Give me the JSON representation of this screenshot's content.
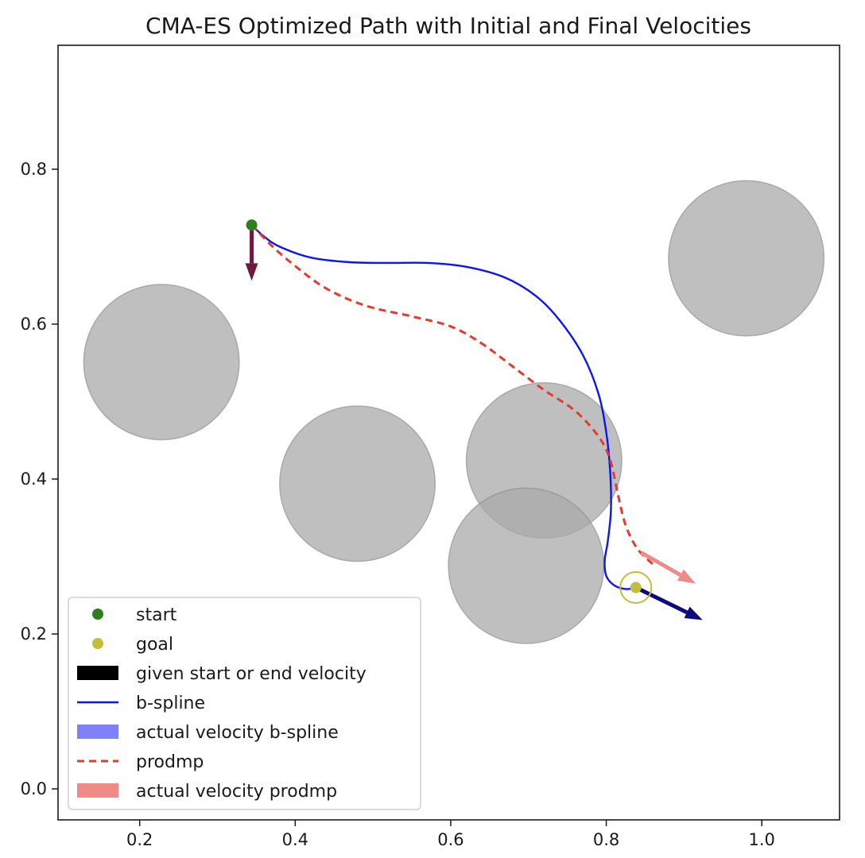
{
  "chart_data": {
    "type": "line",
    "title": "CMA-ES Optimized Path with Initial and Final Velocities",
    "xlabel": "",
    "ylabel": "",
    "xlim": [
      0.095,
      1.1
    ],
    "ylim": [
      -0.04,
      0.96
    ],
    "x_ticks": [
      0.2,
      0.4,
      0.6,
      0.8,
      1.0
    ],
    "x_tick_labels": [
      "0.2",
      "0.4",
      "0.6",
      "0.8",
      "1.0"
    ],
    "y_ticks": [
      0.0,
      0.2,
      0.4,
      0.6,
      0.8
    ],
    "y_tick_labels": [
      "0.0",
      "0.2",
      "0.4",
      "0.6",
      "0.8"
    ],
    "grid": false,
    "legend_position": "lower-left",
    "colors": {
      "start": "#2e7d1e",
      "goal": "#c2bd3a",
      "given_velocity": "#000000",
      "bspline": "#0a14f5",
      "actual_velocity_bspline": "#7f80fa",
      "prodmp": "#e53a2e",
      "actual_velocity_prodmp": "#f08a86",
      "obstacle": "#a9a9a9",
      "axes": "#1a1a1a"
    },
    "obstacles": [
      {
        "x": 0.228,
        "y": 0.551,
        "r": 0.1
      },
      {
        "x": 0.48,
        "y": 0.394,
        "r": 0.1
      },
      {
        "x": 0.72,
        "y": 0.424,
        "r": 0.1
      },
      {
        "x": 0.697,
        "y": 0.288,
        "r": 0.1
      },
      {
        "x": 0.98,
        "y": 0.685,
        "r": 0.1
      }
    ],
    "start": {
      "x": 0.344,
      "y": 0.728
    },
    "goal": {
      "x": 0.838,
      "y": 0.26,
      "tolerance_radius": 0.02
    },
    "series": [
      {
        "name": "b-spline",
        "style": "solid",
        "x": [
          0.344,
          0.36,
          0.38,
          0.42,
          0.47,
          0.52,
          0.57,
          0.62,
          0.67,
          0.71,
          0.74,
          0.77,
          0.79,
          0.8,
          0.805,
          0.806,
          0.802,
          0.798,
          0.8,
          0.81,
          0.825,
          0.838
        ],
        "y": [
          0.728,
          0.713,
          0.7,
          0.686,
          0.68,
          0.679,
          0.679,
          0.674,
          0.66,
          0.636,
          0.605,
          0.56,
          0.51,
          0.46,
          0.41,
          0.36,
          0.32,
          0.295,
          0.275,
          0.263,
          0.258,
          0.26
        ]
      },
      {
        "name": "prodmp",
        "style": "dashed",
        "x": [
          0.344,
          0.37,
          0.4,
          0.44,
          0.49,
          0.55,
          0.6,
          0.64,
          0.68,
          0.72,
          0.76,
          0.79,
          0.805,
          0.815,
          0.825,
          0.84,
          0.86
        ],
        "y": [
          0.728,
          0.701,
          0.675,
          0.646,
          0.624,
          0.61,
          0.597,
          0.575,
          0.545,
          0.515,
          0.488,
          0.455,
          0.425,
          0.38,
          0.34,
          0.31,
          0.29
        ]
      }
    ],
    "velocity_arrows": [
      {
        "name": "initial velocity",
        "x": 0.344,
        "y": 0.728,
        "dx": 0.0,
        "dy": -0.072,
        "color": "#6e1a3f"
      },
      {
        "name": "final velocity b-spline",
        "x": 0.838,
        "y": 0.26,
        "dx": 0.086,
        "dy": -0.042,
        "color": "#0b0a80"
      },
      {
        "name": "final velocity prodmp",
        "x": 0.845,
        "y": 0.305,
        "dx": 0.07,
        "dy": -0.04,
        "color": "#f08a86"
      }
    ],
    "legend": [
      {
        "label": "start",
        "kind": "marker",
        "color_key": "start"
      },
      {
        "label": "goal",
        "kind": "marker",
        "color_key": "goal"
      },
      {
        "label": "given start or end velocity",
        "kind": "patch",
        "color_key": "given_velocity"
      },
      {
        "label": "b-spline",
        "kind": "line",
        "color_key": "bspline"
      },
      {
        "label": "actual velocity b-spline",
        "kind": "patch",
        "color_key": "actual_velocity_bspline"
      },
      {
        "label": "prodmp",
        "kind": "dashed",
        "color_key": "prodmp"
      },
      {
        "label": "actual velocity prodmp",
        "kind": "patch",
        "color_key": "actual_velocity_prodmp"
      }
    ]
  }
}
